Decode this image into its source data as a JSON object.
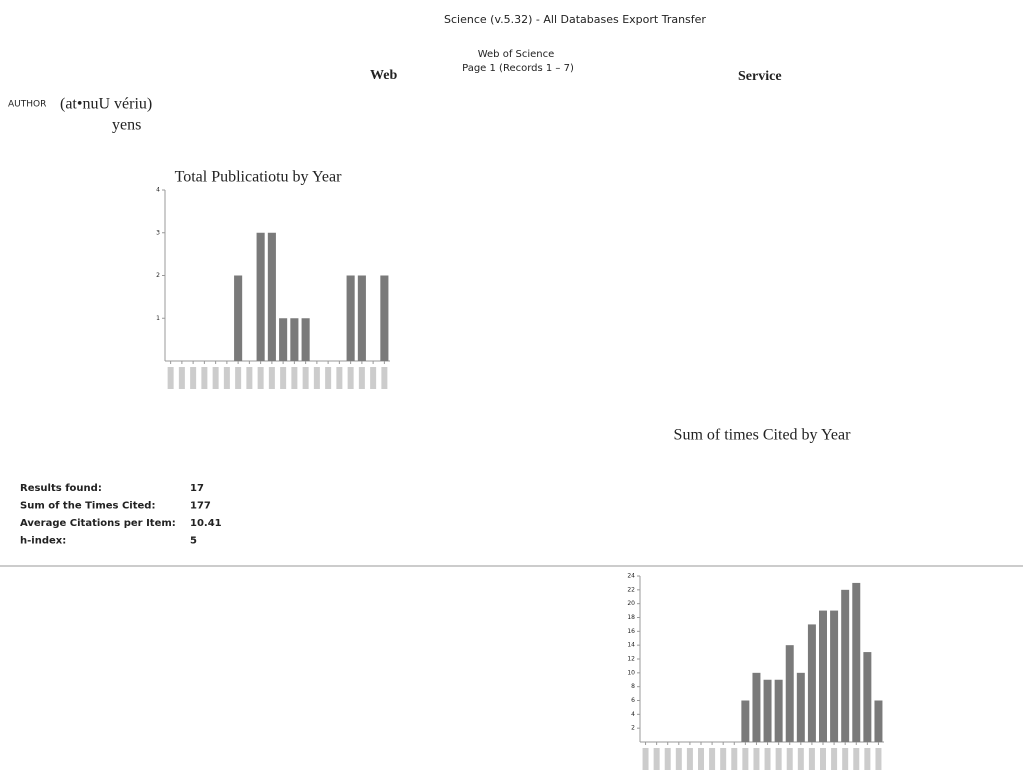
{
  "header": {
    "title": "Science (v.5.32) - All Databases Export Transfer",
    "subtitle": "Web of Science",
    "page": "Page 1 (Records 1 – 7)",
    "left": "Web",
    "right": "Service"
  },
  "author": {
    "label": "AUTHOR",
    "name": "(at•nuU vériu)",
    "line2": "yens"
  },
  "summary": [
    {
      "label": "Results found:",
      "value": 17
    },
    {
      "label": "Sum of the Times Cited:",
      "value": 177
    },
    {
      "label": "Average Citations per Item:",
      "value": 10.41
    },
    {
      "label": "h-index:",
      "value": 5
    }
  ],
  "chart_data": [
    {
      "type": "bar",
      "title": "Total Publicatiotu by Year",
      "categories": [
        null,
        null,
        null,
        null,
        null,
        null,
        null,
        null,
        null,
        null,
        null,
        null,
        null,
        null,
        null,
        null,
        null,
        null,
        null,
        null
      ],
      "values": [
        0,
        0,
        0,
        0,
        0,
        0,
        2,
        0,
        3,
        3,
        1,
        1,
        1,
        0,
        0,
        0,
        2,
        2,
        0,
        2
      ],
      "color": "#7a7a7a",
      "ylim": [
        0,
        4
      ],
      "yticks": [
        1,
        2,
        3,
        4
      ]
    },
    {
      "type": "bar",
      "title": "Sum of times Cited by Year",
      "categories": [
        null,
        null,
        null,
        null,
        null,
        null,
        null,
        null,
        null,
        null,
        null,
        null,
        null,
        null,
        null,
        null,
        null,
        null,
        null,
        null,
        null,
        null
      ],
      "values": [
        0,
        0,
        0,
        0,
        0,
        0,
        0,
        0,
        0,
        6,
        10,
        9,
        9,
        14,
        10,
        17,
        19,
        19,
        22,
        23,
        13,
        6
      ],
      "color": "#7a7a7a",
      "ylim": [
        0,
        24
      ],
      "yticks": [
        2,
        4,
        6,
        8,
        10,
        12,
        14,
        16,
        18,
        20,
        22,
        24
      ]
    }
  ]
}
